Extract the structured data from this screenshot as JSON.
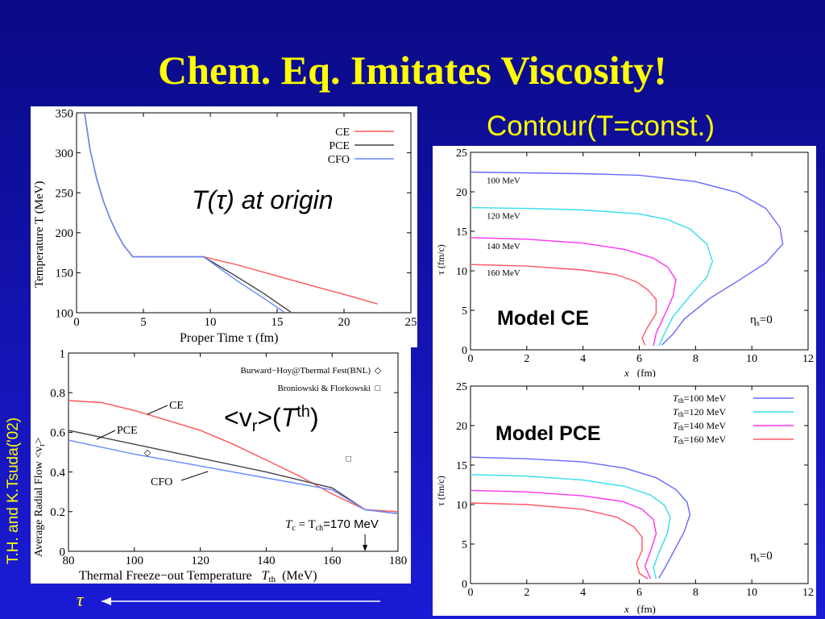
{
  "slide": {
    "title": "Chem. Eq. Imitates Viscosity!",
    "contour_heading": "Contour(T=const.)",
    "credit": "T.H. and K.Tsuda('02)",
    "tau_symbol": "τ",
    "title_color": "#ffff00"
  },
  "chart_data": [
    {
      "id": "temperature_vs_time",
      "type": "line",
      "annotation": "T(τ) at origin",
      "xlabel": "Proper Time  τ   (fm)",
      "ylabel": "Temperature  T  (MeV)",
      "xlim": [
        0,
        25
      ],
      "ylim": [
        100,
        350
      ],
      "xticks": [
        "0",
        "5",
        "10",
        "15",
        "20",
        "25"
      ],
      "yticks": [
        "100",
        "150",
        "200",
        "250",
        "300",
        "350"
      ],
      "legend_position": "top-right",
      "series": [
        {
          "name": "CE",
          "color": "#ff5555",
          "x": [
            0.6,
            1.0,
            1.5,
            2.0,
            2.5,
            3.0,
            3.5,
            4.2,
            9.5,
            12,
            15,
            18,
            20,
            22.5
          ],
          "y": [
            350,
            305,
            268,
            240,
            218,
            200,
            185,
            170,
            170,
            160,
            146,
            132,
            123,
            111
          ]
        },
        {
          "name": "PCE",
          "color": "#444444",
          "x": [
            0.6,
            1.0,
            1.5,
            2.0,
            2.5,
            3.0,
            3.5,
            4.2,
            9.5,
            12,
            14,
            16
          ],
          "y": [
            350,
            305,
            268,
            240,
            218,
            200,
            185,
            170,
            170,
            145,
            124,
            101
          ]
        },
        {
          "name": "CFO",
          "color": "#6688ff",
          "x": [
            0.6,
            1.0,
            1.5,
            2.0,
            2.5,
            3.0,
            3.5,
            4.2,
            9.5,
            12,
            14,
            15.5
          ],
          "y": [
            350,
            305,
            268,
            240,
            218,
            200,
            185,
            170,
            170,
            140,
            118,
            101
          ]
        }
      ]
    },
    {
      "id": "radial_flow",
      "type": "line",
      "annotation_prefix": "<v",
      "annotation_sub": "r",
      "annotation_mid": ">(",
      "annotation_T": "T",
      "annotation_sup": "th",
      "annotation_suffix": ")",
      "xlabel": "Thermal Freeze−out Temperature",
      "xlabel_symbol": "T",
      "xlabel_sub": "th",
      "xlabel_unit": "(MeV)",
      "ylabel": "Average Radial Flow  <v",
      "ylabel_sub": "r",
      "ylabel_end": ">",
      "xlim": [
        80,
        180
      ],
      "ylim": [
        0,
        1
      ],
      "xticks": [
        "80",
        "100",
        "120",
        "140",
        "160",
        "180"
      ],
      "yticks": [
        "0",
        "0.2",
        "0.4",
        "0.6",
        "0.8",
        "1"
      ],
      "tc_label": "T",
      "tc_sub1": "c",
      "tc_eq": " = T",
      "tc_sub2": "ch",
      "tc_value": "=170 MeV",
      "line_labels": [
        "CE",
        "PCE",
        "CFO"
      ],
      "series": [
        {
          "name": "CE",
          "color": "#ff5555",
          "x": [
            80,
            90,
            100,
            110,
            120,
            130,
            140,
            150,
            160,
            170,
            180
          ],
          "y": [
            0.76,
            0.75,
            0.71,
            0.66,
            0.61,
            0.54,
            0.46,
            0.38,
            0.29,
            0.21,
            0.2
          ]
        },
        {
          "name": "PCE",
          "color": "#444444",
          "x": [
            80,
            100,
            120,
            140,
            160,
            170,
            180
          ],
          "y": [
            0.61,
            0.54,
            0.47,
            0.4,
            0.32,
            0.21,
            0.19
          ]
        },
        {
          "name": "CFO",
          "color": "#6688ff",
          "x": [
            80,
            100,
            120,
            140,
            160,
            170,
            180
          ],
          "y": [
            0.56,
            0.49,
            0.43,
            0.37,
            0.31,
            0.21,
            0.19
          ]
        }
      ],
      "points": [
        {
          "name": "Burward−Hoy@Thermal Fest(BNL)",
          "marker": "◇",
          "x": 104,
          "y": 0.5
        },
        {
          "name": "Broniowski & Florkowski",
          "marker": "□",
          "x": 165,
          "y": 0.47
        }
      ]
    },
    {
      "id": "contour_ce",
      "type": "line",
      "model_label": "Model CE",
      "eta_label": "η",
      "eta_sub": "s",
      "eta_value": "=0",
      "xlabel": "x",
      "xlabel_unit": "(fm)",
      "ylabel": "τ  (fm/c)",
      "xlim": [
        0,
        12
      ],
      "ylim": [
        0,
        25
      ],
      "xticks": [
        "0",
        "2",
        "4",
        "6",
        "8",
        "10",
        "12"
      ],
      "yticks": [
        "0",
        "5",
        "10",
        "15",
        "20",
        "25"
      ],
      "series": [
        {
          "name": "100 MeV",
          "color": "#6666ff",
          "x": [
            0,
            2,
            4,
            6,
            8,
            9.5,
            10.5,
            11.0,
            11.1,
            10.5,
            9.5,
            8.5,
            7.6,
            7.2,
            6.8
          ],
          "y": [
            22.5,
            22.4,
            22.3,
            22.1,
            21.3,
            19.9,
            17.9,
            15.5,
            13.4,
            11.0,
            8.7,
            6.5,
            3.9,
            2.0,
            0.6
          ]
        },
        {
          "name": "120 MeV",
          "color": "#33ddee",
          "x": [
            0,
            2,
            4,
            6,
            7,
            7.8,
            8.4,
            8.6,
            8.4,
            7.8,
            7.2,
            6.9,
            6.7
          ],
          "y": [
            18.0,
            17.9,
            17.7,
            17.2,
            16.5,
            15.3,
            13.4,
            11.2,
            9.2,
            6.8,
            4.2,
            2.1,
            0.5
          ]
        },
        {
          "name": "140 MeV",
          "color": "#ff33ee",
          "x": [
            0,
            2,
            4,
            5.5,
            6.5,
            7.0,
            7.3,
            7.2,
            6.9,
            6.6,
            6.5
          ],
          "y": [
            14.2,
            14.0,
            13.5,
            12.7,
            11.6,
            10.5,
            8.9,
            6.8,
            4.4,
            2.1,
            0.5
          ]
        },
        {
          "name": "160 MeV",
          "color": "#ff5566",
          "x": [
            0,
            2,
            4,
            5.2,
            5.9,
            6.3,
            6.6,
            6.6,
            6.3,
            6.1,
            6.2
          ],
          "y": [
            10.8,
            10.6,
            10.1,
            9.5,
            8.6,
            7.6,
            6.4,
            4.6,
            2.9,
            1.5,
            0.6
          ]
        }
      ]
    },
    {
      "id": "contour_pce",
      "type": "line",
      "model_label": "Model PCE",
      "eta_label": "η",
      "eta_sub": "s",
      "eta_value": "=0",
      "xlabel": "x",
      "xlabel_unit": "(fm)",
      "ylabel": "τ  (fm/c)",
      "xlim": [
        0,
        12
      ],
      "ylim": [
        0,
        25
      ],
      "xticks": [
        "0",
        "2",
        "4",
        "6",
        "8",
        "10",
        "12"
      ],
      "yticks": [
        "0",
        "5",
        "10",
        "15",
        "20",
        "25"
      ],
      "legend_symbol": "T",
      "legend_sub": "th",
      "series": [
        {
          "name": "=100 MeV",
          "color": "#6666ff",
          "x": [
            0,
            2,
            4,
            5.5,
            6.6,
            7.3,
            7.7,
            7.8,
            7.6,
            7.2,
            6.9,
            6.7
          ],
          "y": [
            16.0,
            15.8,
            15.4,
            14.6,
            13.4,
            11.9,
            10.3,
            8.7,
            6.6,
            3.9,
            1.9,
            0.7
          ]
        },
        {
          "name": "=120 MeV",
          "color": "#33ddee",
          "x": [
            0,
            2,
            4,
            5.5,
            6.4,
            6.9,
            7.1,
            7.0,
            6.7,
            6.5,
            6.6
          ],
          "y": [
            13.8,
            13.6,
            13.1,
            12.3,
            11.2,
            9.9,
            8.4,
            6.4,
            3.9,
            2.0,
            0.6
          ]
        },
        {
          "name": "=140 MeV",
          "color": "#ff33ee",
          "x": [
            0,
            2,
            4,
            5.4,
            6.1,
            6.5,
            6.6,
            6.4,
            6.2,
            6.4
          ],
          "y": [
            11.8,
            11.6,
            11.1,
            10.4,
            9.4,
            8.1,
            6.3,
            4.1,
            2.2,
            0.6
          ]
        },
        {
          "name": "=160 MeV",
          "color": "#ff5566",
          "x": [
            0,
            2,
            4,
            5.2,
            5.8,
            6.1,
            6.1,
            5.9,
            6.0,
            6.3
          ],
          "y": [
            10.2,
            10.0,
            9.4,
            8.4,
            7.2,
            5.9,
            4.2,
            2.6,
            1.3,
            0.6
          ]
        }
      ]
    }
  ]
}
